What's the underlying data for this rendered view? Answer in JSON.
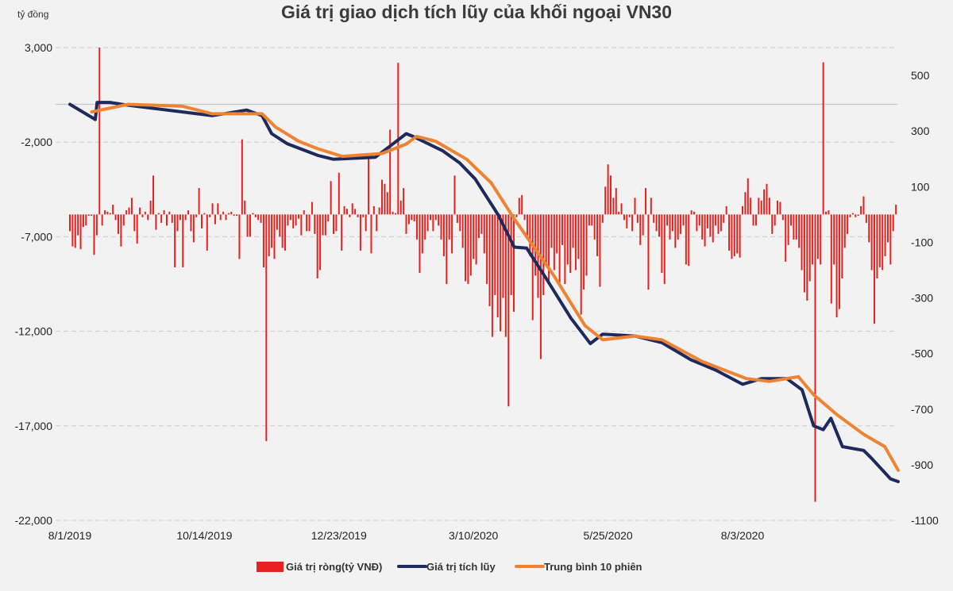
{
  "chart_data": {
    "type": "bar+line",
    "title": "Giá trị giao dịch tích lũy của khối ngoại VN30",
    "left_axis_unit": "tỷ đồng",
    "left_ylim": [
      -22000,
      3000
    ],
    "left_ticks": [
      3000,
      -2000,
      -7000,
      -12000,
      -17000,
      -22000
    ],
    "left_tick_labels": [
      "3,000",
      "-2,000",
      "-7,000",
      "-12,000",
      "-17,000",
      "-22,000"
    ],
    "right_ylim": [
      -1100,
      600
    ],
    "right_ticks": [
      500,
      300,
      100,
      -100,
      -300,
      -500,
      -700,
      -900,
      -1100
    ],
    "right_tick_labels": [
      "500",
      "300",
      "100",
      "-100",
      "-300",
      "-500",
      "-700",
      "-900",
      "-1100"
    ],
    "x_tick_labels": [
      "8/1/2019",
      "10/14/2019",
      "12/23/2019",
      "3/10/2020",
      "5/25/2020",
      "8/3/2020"
    ],
    "grid": "horizontal dashed",
    "legend_placement": "bottom",
    "colors": {
      "net": "#e8211f",
      "cumulative": "#1f2a5c",
      "ma10": "#ee8433",
      "zero_line": "#c8c8c8",
      "grid": "#d0d0d0"
    },
    "series": [
      {
        "name": "Giá trị ròng(tỷ VNĐ)",
        "type": "bar",
        "axis": "right",
        "start_date": "8/1/2019",
        "values": [
          -60,
          -115,
          -120,
          -75,
          -125,
          -45,
          -40,
          -5,
          -5,
          -145,
          -75,
          600,
          -40,
          15,
          10,
          5,
          35,
          -20,
          -70,
          -115,
          -40,
          15,
          25,
          60,
          -60,
          -105,
          25,
          -10,
          10,
          -20,
          50,
          140,
          -55,
          5,
          -30,
          15,
          -40,
          10,
          -30,
          -190,
          -60,
          -20,
          -190,
          -20,
          15,
          -60,
          -100,
          -10,
          95,
          -50,
          5,
          -130,
          -10,
          40,
          -35,
          40,
          -20,
          10,
          -20,
          5,
          10,
          -5,
          -5,
          -160,
          270,
          50,
          -80,
          -80,
          5,
          -10,
          -20,
          -30,
          -190,
          -815,
          -150,
          -120,
          -160,
          -55,
          -80,
          -120,
          -130,
          -40,
          -20,
          -50,
          -40,
          -15,
          -75,
          15,
          -60,
          -60,
          45,
          -70,
          -230,
          -200,
          -75,
          -75,
          -25,
          120,
          -70,
          -60,
          150,
          -130,
          30,
          20,
          -10,
          40,
          20,
          -10,
          -130,
          -10,
          -60,
          210,
          -140,
          30,
          -60,
          25,
          125,
          110,
          80,
          305,
          10,
          5,
          545,
          50,
          95,
          -70,
          -35,
          -20,
          -25,
          -90,
          -210,
          -140,
          -90,
          -60,
          -20,
          -60,
          -20,
          -40,
          -90,
          -150,
          -250,
          -90,
          -140,
          140,
          -30,
          -60,
          -120,
          -240,
          -250,
          -220,
          -160,
          -180,
          -85,
          -70,
          -140,
          -250,
          -330,
          -440,
          -290,
          -370,
          -420,
          -300,
          -440,
          -690,
          -290,
          -350,
          -10,
          60,
          70,
          -20,
          -90,
          -150,
          -380,
          -220,
          -300,
          -520,
          -290,
          -180,
          -250,
          -120,
          -200,
          -140,
          -260,
          -110,
          -250,
          -180,
          -210,
          -120,
          -200,
          -160,
          -360,
          -270,
          -220,
          -40,
          -40,
          -90,
          -150,
          -260,
          -30,
          100,
          180,
          140,
          60,
          95,
          10,
          40,
          -20,
          -50,
          -10,
          -60,
          60,
          -30,
          -110,
          -75,
          95,
          -270,
          60,
          -30,
          -60,
          -80,
          -210,
          -250,
          -40,
          -90,
          -60,
          -120,
          -90,
          -70,
          -40,
          -180,
          -185,
          15,
          10,
          -60,
          -40,
          -90,
          -115,
          -50,
          -80,
          -100,
          -40,
          -70,
          -60,
          -30,
          30,
          -130,
          -160,
          -150,
          -140,
          -155,
          30,
          80,
          130,
          60,
          -40,
          -40,
          60,
          50,
          90,
          110,
          60,
          -70,
          -40,
          50,
          45,
          -20,
          -170,
          -110,
          -40,
          -90,
          -90,
          -120,
          -200,
          -280,
          -310,
          -240,
          -180,
          -1033,
          -160,
          -180,
          547,
          10,
          15,
          -320,
          -180,
          -370,
          -340,
          -230,
          -120,
          -70,
          -10,
          5,
          -10,
          -5,
          30,
          65,
          -30,
          -100,
          -200,
          -393,
          -230,
          -190,
          -200,
          -150,
          -100,
          -180,
          -60,
          35
        ]
      },
      {
        "name": "Giá trị tích lũy",
        "type": "line",
        "axis": "left",
        "points": [
          [
            "8/1/2019",
            0
          ],
          [
            "8/15/2019",
            -800
          ],
          [
            "8/16/2019",
            100
          ],
          [
            "8/23/2019",
            100
          ],
          [
            "9/2/2019",
            -50
          ],
          [
            "10/2/2019",
            -400
          ],
          [
            "10/18/2019",
            -600
          ],
          [
            "11/5/2019",
            -300
          ],
          [
            "11/13/2019",
            -600
          ],
          [
            "11/18/2019",
            -1550
          ],
          [
            "11/26/2019",
            -2080
          ],
          [
            "12/12/2019",
            -2700
          ],
          [
            "12/20/2019",
            -2900
          ],
          [
            "1/13/2020",
            -2800
          ],
          [
            "1/21/2020",
            -2250
          ],
          [
            "1/31/2020",
            -1550
          ],
          [
            "2/4/2020",
            -1700
          ],
          [
            "2/21/2020",
            -2450
          ],
          [
            "3/2/2020",
            -3100
          ],
          [
            "3/11/2020",
            -3950
          ],
          [
            "3/24/2020",
            -5850
          ],
          [
            "4/2/2020",
            -7550
          ],
          [
            "4/9/2020",
            -7600
          ],
          [
            "4/20/2020",
            -9200
          ],
          [
            "5/4/2020",
            -11300
          ],
          [
            "5/15/2020",
            -12650
          ],
          [
            "5/22/2020",
            -12150
          ],
          [
            "6/8/2020",
            -12250
          ],
          [
            "6/22/2020",
            -12600
          ],
          [
            "7/7/2020",
            -13500
          ],
          [
            "7/20/2020",
            -14050
          ],
          [
            "8/3/2020",
            -14800
          ],
          [
            "8/13/2020",
            -14500
          ],
          [
            "8/26/2020",
            -14500
          ],
          [
            "9/3/2020",
            -15100
          ],
          [
            "9/9/2020",
            -17000
          ],
          [
            "9/14/2020",
            -17200
          ],
          [
            "9/18/2020",
            -16600
          ],
          [
            "9/24/2020",
            -18100
          ],
          [
            "10/5/2020",
            -18300
          ],
          [
            "10/9/2020",
            -18700
          ],
          [
            "10/19/2020",
            -19800
          ],
          [
            "10/23/2020",
            -19950
          ]
        ]
      },
      {
        "name": "Trung bình 10 phiên",
        "type": "line",
        "axis": "left",
        "points": [
          [
            "8/13/2019",
            -400
          ],
          [
            "9/2/2019",
            0
          ],
          [
            "10/2/2019",
            -100
          ],
          [
            "10/18/2019",
            -500
          ],
          [
            "11/13/2019",
            -500
          ],
          [
            "11/20/2019",
            -1200
          ],
          [
            "12/2/2019",
            -1950
          ],
          [
            "12/12/2019",
            -2350
          ],
          [
            "12/25/2019",
            -2750
          ],
          [
            "1/17/2020",
            -2600
          ],
          [
            "1/31/2020",
            -2100
          ],
          [
            "2/6/2020",
            -1700
          ],
          [
            "2/17/2020",
            -1950
          ],
          [
            "3/6/2020",
            -2900
          ],
          [
            "3/20/2020",
            -4150
          ],
          [
            "4/2/2020",
            -6050
          ],
          [
            "4/24/2020",
            -9000
          ],
          [
            "5/12/2020",
            -11700
          ],
          [
            "5/22/2020",
            -12450
          ],
          [
            "6/8/2020",
            -12250
          ],
          [
            "6/22/2020",
            -12450
          ],
          [
            "7/13/2020",
            -13600
          ],
          [
            "8/5/2020",
            -14500
          ],
          [
            "8/17/2020",
            -14650
          ],
          [
            "9/1/2020",
            -14400
          ],
          [
            "9/9/2020",
            -15350
          ],
          [
            "9/21/2020",
            -16400
          ],
          [
            "10/5/2020",
            -17450
          ],
          [
            "10/16/2020",
            -18100
          ],
          [
            "10/23/2020",
            -19350
          ]
        ]
      }
    ]
  }
}
